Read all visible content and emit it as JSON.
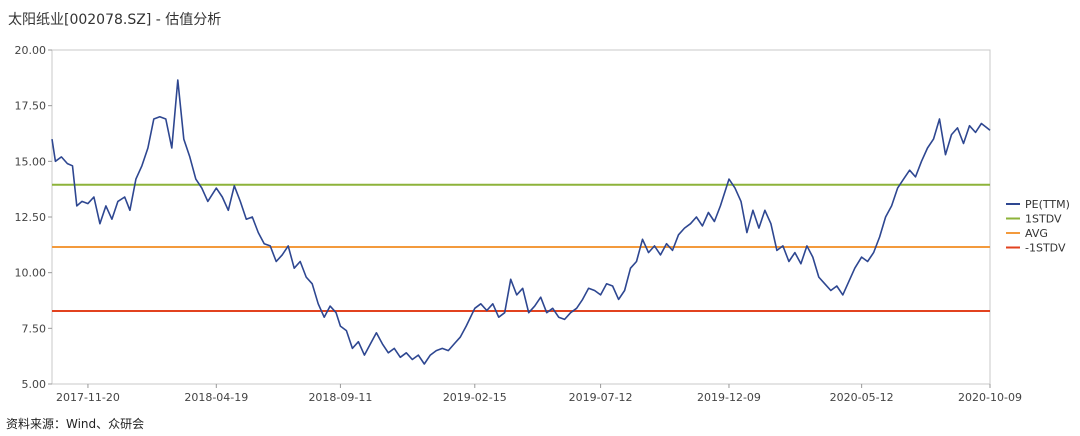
{
  "title": "太阳纸业[002078.SZ] - 估值分析",
  "source": "资料来源：Wind、众研会",
  "chart_data": {
    "type": "line",
    "title": "太阳纸业[002078.SZ] - 估值分析",
    "xlabel": "",
    "ylabel": "",
    "ylim": [
      5,
      20
    ],
    "yticks": [
      "5.00",
      "7.50",
      "10.00",
      "12.50",
      "15.00",
      "17.50",
      "20.00"
    ],
    "xrange": [
      "2017-10-09",
      "2020-10-09"
    ],
    "xticks": [
      "2017-11-20",
      "2018-04-19",
      "2018-09-11",
      "2019-02-15",
      "2019-07-12",
      "2019-12-09",
      "2020-05-12",
      "2020-10-09"
    ],
    "grid": false,
    "legend": "right",
    "reference_lines": [
      {
        "name": "1STDV",
        "value": 13.95,
        "color": "#8db33a"
      },
      {
        "name": "AVG",
        "value": 11.15,
        "color": "#f39a3c"
      },
      {
        "name": "-1STDV",
        "value": 8.28,
        "color": "#e2421f"
      }
    ],
    "series": [
      {
        "name": "PE(TTM)",
        "color": "#2e4791",
        "points": [
          [
            "2017-10-09",
            16.0
          ],
          [
            "2017-10-13",
            15.0
          ],
          [
            "2017-10-20",
            15.2
          ],
          [
            "2017-10-27",
            14.9
          ],
          [
            "2017-11-02",
            14.8
          ],
          [
            "2017-11-07",
            13.0
          ],
          [
            "2017-11-13",
            13.2
          ],
          [
            "2017-11-20",
            13.1
          ],
          [
            "2017-11-27",
            13.4
          ],
          [
            "2017-12-04",
            12.2
          ],
          [
            "2017-12-11",
            13.0
          ],
          [
            "2017-12-18",
            12.4
          ],
          [
            "2017-12-25",
            13.2
          ],
          [
            "2018-01-02",
            13.4
          ],
          [
            "2018-01-08",
            12.8
          ],
          [
            "2018-01-15",
            14.2
          ],
          [
            "2018-01-22",
            14.8
          ],
          [
            "2018-01-29",
            15.6
          ],
          [
            "2018-02-05",
            16.9
          ],
          [
            "2018-02-12",
            17.0
          ],
          [
            "2018-02-19",
            16.9
          ],
          [
            "2018-02-26",
            15.6
          ],
          [
            "2018-03-05",
            18.65
          ],
          [
            "2018-03-12",
            16.0
          ],
          [
            "2018-03-19",
            15.2
          ],
          [
            "2018-03-26",
            14.2
          ],
          [
            "2018-04-02",
            13.8
          ],
          [
            "2018-04-09",
            13.2
          ],
          [
            "2018-04-19",
            13.8
          ],
          [
            "2018-04-26",
            13.4
          ],
          [
            "2018-05-03",
            12.8
          ],
          [
            "2018-05-10",
            13.9
          ],
          [
            "2018-05-17",
            13.2
          ],
          [
            "2018-05-24",
            12.4
          ],
          [
            "2018-05-31",
            12.5
          ],
          [
            "2018-06-07",
            11.8
          ],
          [
            "2018-06-14",
            11.3
          ],
          [
            "2018-06-21",
            11.2
          ],
          [
            "2018-06-28",
            10.5
          ],
          [
            "2018-07-05",
            10.8
          ],
          [
            "2018-07-12",
            11.2
          ],
          [
            "2018-07-19",
            10.2
          ],
          [
            "2018-07-26",
            10.5
          ],
          [
            "2018-08-02",
            9.8
          ],
          [
            "2018-08-09",
            9.5
          ],
          [
            "2018-08-16",
            8.6
          ],
          [
            "2018-08-23",
            8.0
          ],
          [
            "2018-08-30",
            8.5
          ],
          [
            "2018-09-06",
            8.2
          ],
          [
            "2018-09-11",
            7.6
          ],
          [
            "2018-09-18",
            7.4
          ],
          [
            "2018-09-25",
            6.6
          ],
          [
            "2018-10-02",
            6.9
          ],
          [
            "2018-10-09",
            6.3
          ],
          [
            "2018-10-16",
            6.8
          ],
          [
            "2018-10-23",
            7.3
          ],
          [
            "2018-10-30",
            6.8
          ],
          [
            "2018-11-06",
            6.4
          ],
          [
            "2018-11-13",
            6.6
          ],
          [
            "2018-11-20",
            6.2
          ],
          [
            "2018-11-27",
            6.4
          ],
          [
            "2018-12-04",
            6.1
          ],
          [
            "2018-12-11",
            6.3
          ],
          [
            "2018-12-18",
            5.9
          ],
          [
            "2018-12-25",
            6.3
          ],
          [
            "2019-01-01",
            6.5
          ],
          [
            "2019-01-08",
            6.6
          ],
          [
            "2019-01-15",
            6.5
          ],
          [
            "2019-01-22",
            6.8
          ],
          [
            "2019-01-29",
            7.1
          ],
          [
            "2019-02-05",
            7.6
          ],
          [
            "2019-02-15",
            8.4
          ],
          [
            "2019-02-22",
            8.6
          ],
          [
            "2019-03-01",
            8.3
          ],
          [
            "2019-03-08",
            8.6
          ],
          [
            "2019-03-15",
            8.0
          ],
          [
            "2019-03-22",
            8.2
          ],
          [
            "2019-03-29",
            9.7
          ],
          [
            "2019-04-05",
            9.0
          ],
          [
            "2019-04-12",
            9.3
          ],
          [
            "2019-04-19",
            8.2
          ],
          [
            "2019-04-26",
            8.5
          ],
          [
            "2019-05-03",
            8.9
          ],
          [
            "2019-05-10",
            8.2
          ],
          [
            "2019-05-17",
            8.4
          ],
          [
            "2019-05-24",
            8.0
          ],
          [
            "2019-05-31",
            7.9
          ],
          [
            "2019-06-07",
            8.2
          ],
          [
            "2019-06-14",
            8.4
          ],
          [
            "2019-06-21",
            8.8
          ],
          [
            "2019-06-28",
            9.3
          ],
          [
            "2019-07-05",
            9.2
          ],
          [
            "2019-07-12",
            9.0
          ],
          [
            "2019-07-19",
            9.5
          ],
          [
            "2019-07-26",
            9.4
          ],
          [
            "2019-08-02",
            8.8
          ],
          [
            "2019-08-09",
            9.2
          ],
          [
            "2019-08-16",
            10.2
          ],
          [
            "2019-08-23",
            10.5
          ],
          [
            "2019-08-30",
            11.5
          ],
          [
            "2019-09-06",
            10.9
          ],
          [
            "2019-09-13",
            11.2
          ],
          [
            "2019-09-20",
            10.8
          ],
          [
            "2019-09-27",
            11.3
          ],
          [
            "2019-10-04",
            11.0
          ],
          [
            "2019-10-11",
            11.7
          ],
          [
            "2019-10-18",
            12.0
          ],
          [
            "2019-10-25",
            12.2
          ],
          [
            "2019-11-01",
            12.5
          ],
          [
            "2019-11-08",
            12.1
          ],
          [
            "2019-11-15",
            12.7
          ],
          [
            "2019-11-22",
            12.3
          ],
          [
            "2019-11-29",
            13.0
          ],
          [
            "2019-12-09",
            14.2
          ],
          [
            "2019-12-16",
            13.8
          ],
          [
            "2019-12-23",
            13.2
          ],
          [
            "2019-12-30",
            11.8
          ],
          [
            "2020-01-06",
            12.8
          ],
          [
            "2020-01-13",
            12.0
          ],
          [
            "2020-01-20",
            12.8
          ],
          [
            "2020-01-27",
            12.2
          ],
          [
            "2020-02-03",
            11.0
          ],
          [
            "2020-02-10",
            11.2
          ],
          [
            "2020-02-17",
            10.5
          ],
          [
            "2020-02-24",
            10.9
          ],
          [
            "2020-03-02",
            10.4
          ],
          [
            "2020-03-09",
            11.2
          ],
          [
            "2020-03-16",
            10.7
          ],
          [
            "2020-03-23",
            9.8
          ],
          [
            "2020-03-30",
            9.5
          ],
          [
            "2020-04-06",
            9.2
          ],
          [
            "2020-04-13",
            9.4
          ],
          [
            "2020-04-20",
            9.0
          ],
          [
            "2020-04-27",
            9.6
          ],
          [
            "2020-05-04",
            10.2
          ],
          [
            "2020-05-12",
            10.7
          ],
          [
            "2020-05-19",
            10.5
          ],
          [
            "2020-05-26",
            10.9
          ],
          [
            "2020-06-02",
            11.6
          ],
          [
            "2020-06-09",
            12.5
          ],
          [
            "2020-06-16",
            13.0
          ],
          [
            "2020-06-23",
            13.8
          ],
          [
            "2020-06-30",
            14.2
          ],
          [
            "2020-07-07",
            14.6
          ],
          [
            "2020-07-14",
            14.3
          ],
          [
            "2020-07-21",
            15.0
          ],
          [
            "2020-07-28",
            15.6
          ],
          [
            "2020-08-04",
            16.0
          ],
          [
            "2020-08-11",
            16.9
          ],
          [
            "2020-08-18",
            15.3
          ],
          [
            "2020-08-25",
            16.2
          ],
          [
            "2020-09-01",
            16.5
          ],
          [
            "2020-09-08",
            15.8
          ],
          [
            "2020-09-15",
            16.6
          ],
          [
            "2020-09-22",
            16.3
          ],
          [
            "2020-09-29",
            16.7
          ],
          [
            "2020-10-09",
            16.4
          ]
        ]
      }
    ]
  }
}
